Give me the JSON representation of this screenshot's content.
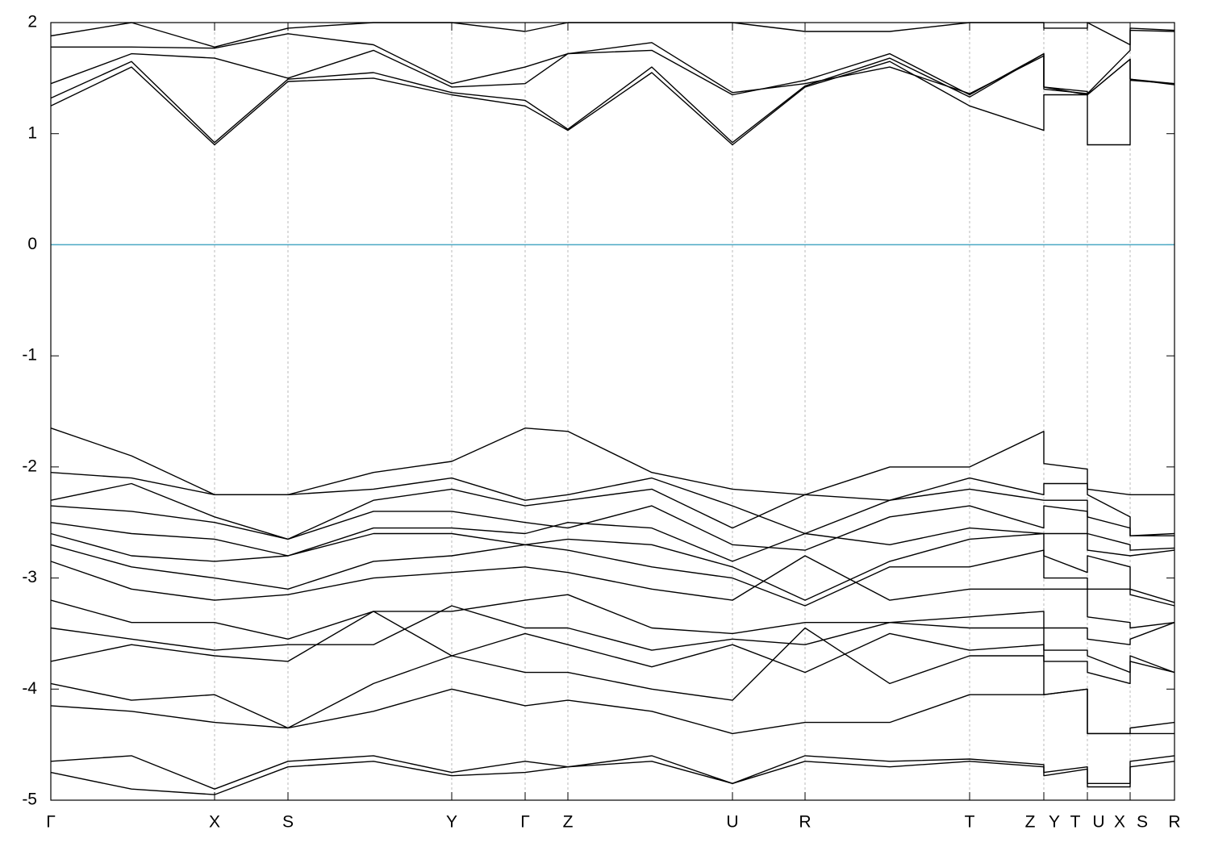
{
  "chart_data": {
    "type": "line",
    "x": [
      0,
      100,
      203,
      294,
      400,
      497,
      588,
      641,
      745,
      845,
      935,
      1040,
      1139,
      1231,
      1231,
      1285,
      1285,
      1338,
      1338,
      1393
    ],
    "xlim": [
      0,
      1393
    ],
    "xticks": [
      {
        "value": 0,
        "label": "Γ"
      },
      {
        "value": 203,
        "label": "X"
      },
      {
        "value": 294,
        "label": "S"
      },
      {
        "value": 497,
        "label": "Y"
      },
      {
        "value": 588,
        "label": "Γ"
      },
      {
        "value": 641,
        "label": "Z"
      },
      {
        "value": 845,
        "label": "U"
      },
      {
        "value": 935,
        "label": "R"
      },
      {
        "value": 1139,
        "label": "T"
      },
      {
        "value": 1214,
        "label": "Z"
      },
      {
        "value": 1244,
        "label": "Y"
      },
      {
        "value": 1270,
        "label": "T"
      },
      {
        "value": 1299,
        "label": "U"
      },
      {
        "value": 1325,
        "label": "X"
      },
      {
        "value": 1353,
        "label": "S"
      },
      {
        "value": 1393,
        "label": "R"
      }
    ],
    "vlines": [
      203,
      294,
      497,
      588,
      641,
      845,
      935,
      1139,
      1231,
      1285,
      1338
    ],
    "ylim": [
      -5,
      2
    ],
    "yticks": [
      -5,
      -4,
      -3,
      -2,
      -1,
      0,
      1,
      2
    ],
    "hline": 0,
    "hline_color": "#4aa8c4",
    "line_color": "#000000",
    "series": [
      {
        "values": [
          1.25,
          1.6,
          0.9,
          1.47,
          1.5,
          1.35,
          1.25,
          1.03,
          1.55,
          0.9,
          1.42,
          1.65,
          1.25,
          1.03,
          1.35,
          1.35,
          0.9,
          0.9,
          1.48,
          1.45
        ]
      },
      {
        "values": [
          1.32,
          1.65,
          0.92,
          1.49,
          1.55,
          1.37,
          1.3,
          1.04,
          1.6,
          0.92,
          1.43,
          1.68,
          1.33,
          1.72,
          1.42,
          1.35,
          1.35,
          1.67,
          1.49,
          1.44
        ]
      },
      {
        "values": [
          1.45,
          1.72,
          1.68,
          1.5,
          1.75,
          1.42,
          1.45,
          1.72,
          1.75,
          1.35,
          1.48,
          1.72,
          1.35,
          1.72,
          1.42,
          1.38,
          1.35,
          1.67,
          1.49,
          1.45
        ]
      },
      {
        "values": [
          1.78,
          1.78,
          1.77,
          1.9,
          1.8,
          1.45,
          1.6,
          1.72,
          1.82,
          1.37,
          1.45,
          1.6,
          1.36,
          1.7,
          1.4,
          1.36,
          1.36,
          1.75,
          1.93,
          1.92
        ]
      },
      {
        "values": [
          1.88,
          2.0,
          1.78,
          1.95,
          2.0,
          2.0,
          1.92,
          2.0,
          2.0,
          2.0,
          1.92,
          1.92,
          2.0,
          2.0,
          1.95,
          1.95,
          2.0,
          1.8,
          1.95,
          1.93
        ]
      },
      {
        "values": [
          -1.65,
          -1.9,
          -2.25,
          -2.25,
          -2.05,
          -1.95,
          -1.65,
          -1.68,
          -2.05,
          -2.2,
          -2.25,
          -2.0,
          -2.0,
          -1.68,
          -1.97,
          -2.02,
          -2.2,
          -2.25,
          -2.25,
          -2.25
        ]
      },
      {
        "values": [
          -2.05,
          -2.1,
          -2.25,
          -2.25,
          -2.2,
          -2.1,
          -2.3,
          -2.25,
          -2.1,
          -2.35,
          -2.6,
          -2.3,
          -2.1,
          -2.25,
          -2.15,
          -2.15,
          -2.25,
          -2.45,
          -2.62,
          -2.6
        ]
      },
      {
        "values": [
          -2.3,
          -2.15,
          -2.45,
          -2.65,
          -2.3,
          -2.2,
          -2.35,
          -2.3,
          -2.2,
          -2.55,
          -2.25,
          -2.3,
          -2.2,
          -2.3,
          -2.3,
          -2.3,
          -2.45,
          -2.55,
          -2.62,
          -2.62
        ]
      },
      {
        "values": [
          -2.35,
          -2.4,
          -2.5,
          -2.65,
          -2.4,
          -2.4,
          -2.5,
          -2.55,
          -2.35,
          -2.7,
          -2.75,
          -2.45,
          -2.35,
          -2.55,
          -2.35,
          -2.4,
          -2.6,
          -2.7,
          -2.75,
          -2.73
        ]
      },
      {
        "values": [
          -2.5,
          -2.6,
          -2.65,
          -2.8,
          -2.55,
          -2.55,
          -2.6,
          -2.5,
          -2.55,
          -2.85,
          -2.6,
          -2.7,
          -2.55,
          -2.6,
          -2.6,
          -2.6,
          -2.75,
          -2.8,
          -2.8,
          -2.75
        ]
      },
      {
        "values": [
          -2.6,
          -2.8,
          -2.85,
          -2.8,
          -2.6,
          -2.6,
          -2.7,
          -2.65,
          -2.7,
          -2.9,
          -3.2,
          -2.85,
          -2.65,
          -2.6,
          -2.8,
          -2.95,
          -2.8,
          -2.9,
          -3.1,
          -3.22
        ]
      },
      {
        "values": [
          -2.7,
          -2.9,
          -3.0,
          -3.1,
          -2.85,
          -2.8,
          -2.7,
          -2.75,
          -2.9,
          -3.0,
          -3.25,
          -2.9,
          -2.9,
          -2.75,
          -3.0,
          -3.0,
          -3.1,
          -3.1,
          -3.15,
          -3.25
        ]
      },
      {
        "values": [
          -2.85,
          -3.1,
          -3.2,
          -3.15,
          -3.0,
          -2.95,
          -2.9,
          -2.95,
          -3.1,
          -3.2,
          -2.8,
          -3.2,
          -3.1,
          -3.1,
          -3.1,
          -3.1,
          -3.35,
          -3.4,
          -3.45,
          -3.4
        ]
      },
      {
        "values": [
          -3.2,
          -3.4,
          -3.4,
          -3.55,
          -3.3,
          -3.3,
          -3.2,
          -3.15,
          -3.45,
          -3.5,
          -3.4,
          -3.4,
          -3.35,
          -3.3,
          -3.45,
          -3.45,
          -3.55,
          -3.6,
          -3.55,
          -3.4
        ]
      },
      {
        "values": [
          -3.45,
          -3.55,
          -3.65,
          -3.6,
          -3.6,
          -3.25,
          -3.45,
          -3.45,
          -3.65,
          -3.55,
          -3.6,
          -3.4,
          -3.45,
          -3.45,
          -3.65,
          -3.65,
          -3.7,
          -3.85,
          -3.7,
          -3.85
        ]
      },
      {
        "values": [
          -3.75,
          -3.6,
          -3.7,
          -3.75,
          -3.3,
          -3.7,
          -3.5,
          -3.6,
          -3.8,
          -3.6,
          -3.85,
          -3.5,
          -3.65,
          -3.6,
          -3.75,
          -3.75,
          -3.85,
          -3.95,
          -3.75,
          -3.85
        ]
      },
      {
        "values": [
          -3.95,
          -4.1,
          -4.05,
          -4.35,
          -3.95,
          -3.7,
          -3.85,
          -3.85,
          -4.0,
          -4.1,
          -3.45,
          -3.95,
          -3.7,
          -3.7,
          -4.05,
          -4.0,
          -4.4,
          -4.4,
          -4.35,
          -4.3
        ]
      },
      {
        "values": [
          -4.15,
          -4.2,
          -4.3,
          -4.35,
          -4.2,
          -4.0,
          -4.15,
          -4.1,
          -4.2,
          -4.4,
          -4.3,
          -4.3,
          -4.05,
          -4.05,
          -4.05,
          -4.0,
          -4.4,
          -4.4,
          -4.4,
          -4.4
        ]
      },
      {
        "values": [
          -4.65,
          -4.6,
          -4.9,
          -4.65,
          -4.6,
          -4.75,
          -4.65,
          -4.7,
          -4.6,
          -4.85,
          -4.6,
          -4.65,
          -4.63,
          -4.68,
          -4.75,
          -4.7,
          -4.85,
          -4.85,
          -4.65,
          -4.6
        ]
      },
      {
        "values": [
          -4.75,
          -4.9,
          -4.95,
          -4.7,
          -4.65,
          -4.78,
          -4.75,
          -4.7,
          -4.65,
          -4.85,
          -4.65,
          -4.7,
          -4.65,
          -4.7,
          -4.78,
          -4.72,
          -4.88,
          -4.88,
          -4.7,
          -4.65
        ]
      }
    ]
  }
}
